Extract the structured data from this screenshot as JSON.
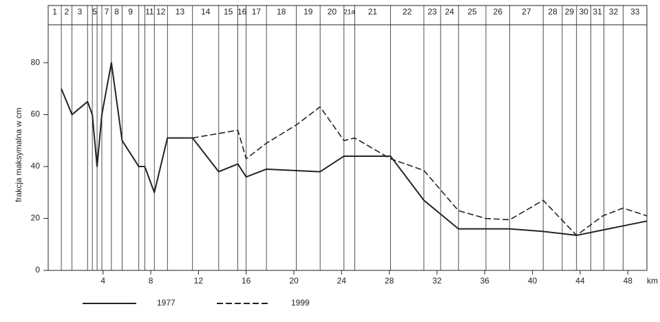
{
  "chart_data": {
    "type": "line",
    "y_label": "frakcja maksymalna w cm",
    "x_label": "km",
    "xlim": [
      -0.6,
      49.6
    ],
    "xticks": [
      4,
      8,
      12,
      16,
      20,
      24,
      28,
      32,
      36,
      40,
      44,
      48
    ],
    "ylim": [
      0,
      94.6
    ],
    "yticks": [
      0,
      20,
      40,
      60,
      80
    ],
    "segments": [
      "1",
      "2",
      "3",
      null,
      "5",
      null,
      "7",
      "8",
      "9",
      null,
      "11",
      "12",
      "13",
      "14",
      "15",
      "16",
      "17",
      "18",
      "19",
      "20",
      "21a",
      "21",
      "22",
      "23",
      "24",
      "25",
      "26",
      "27",
      "28",
      "29",
      "30",
      "31",
      "32",
      "33"
    ],
    "segment_boundaries": [
      0.5,
      1.4,
      2.7,
      3.1,
      3.5,
      3.9,
      4.7,
      5.6,
      7.0,
      7.5,
      8.3,
      9.4,
      11.5,
      13.7,
      15.3,
      16.0,
      17.7,
      20.2,
      22.2,
      24.2,
      25.1,
      28.1,
      30.9,
      32.3,
      33.8,
      36.1,
      38.1,
      40.9,
      42.5,
      43.7,
      44.9,
      46.0,
      47.6
    ],
    "series": [
      {
        "name": "1977",
        "color": "#222222",
        "dash": "solid",
        "x": [
          0.5,
          1.4,
          2.7,
          3.1,
          3.5,
          3.9,
          4.7,
          5.6,
          7.0,
          7.5,
          8.3,
          9.4,
          11.5,
          13.7,
          15.3,
          16.0,
          17.7,
          22.2,
          24.2,
          28.1,
          30.9,
          33.8,
          36.4,
          38.1,
          40.9,
          43.7,
          49.6
        ],
        "values": [
          70,
          60,
          65,
          60,
          40,
          60,
          80,
          50,
          40,
          40,
          30,
          51,
          51,
          38,
          41,
          36,
          39,
          38,
          44,
          44,
          27,
          16,
          16,
          16,
          15,
          13.5,
          19
        ]
      },
      {
        "name": "1999",
        "color": "#222222",
        "dash": "dashed",
        "x": [
          11.5,
          15.3,
          16.0,
          17.7,
          20.2,
          22.2,
          24.2,
          25.1,
          28.1,
          30.9,
          33.8,
          36.1,
          38.1,
          40.9,
          43.7,
          45.9,
          47.6,
          49.6
        ],
        "values": [
          51,
          54,
          43,
          49,
          56,
          63,
          50,
          51,
          43,
          38.5,
          23,
          20,
          19.5,
          27,
          13.5,
          21,
          24,
          21
        ]
      }
    ]
  }
}
